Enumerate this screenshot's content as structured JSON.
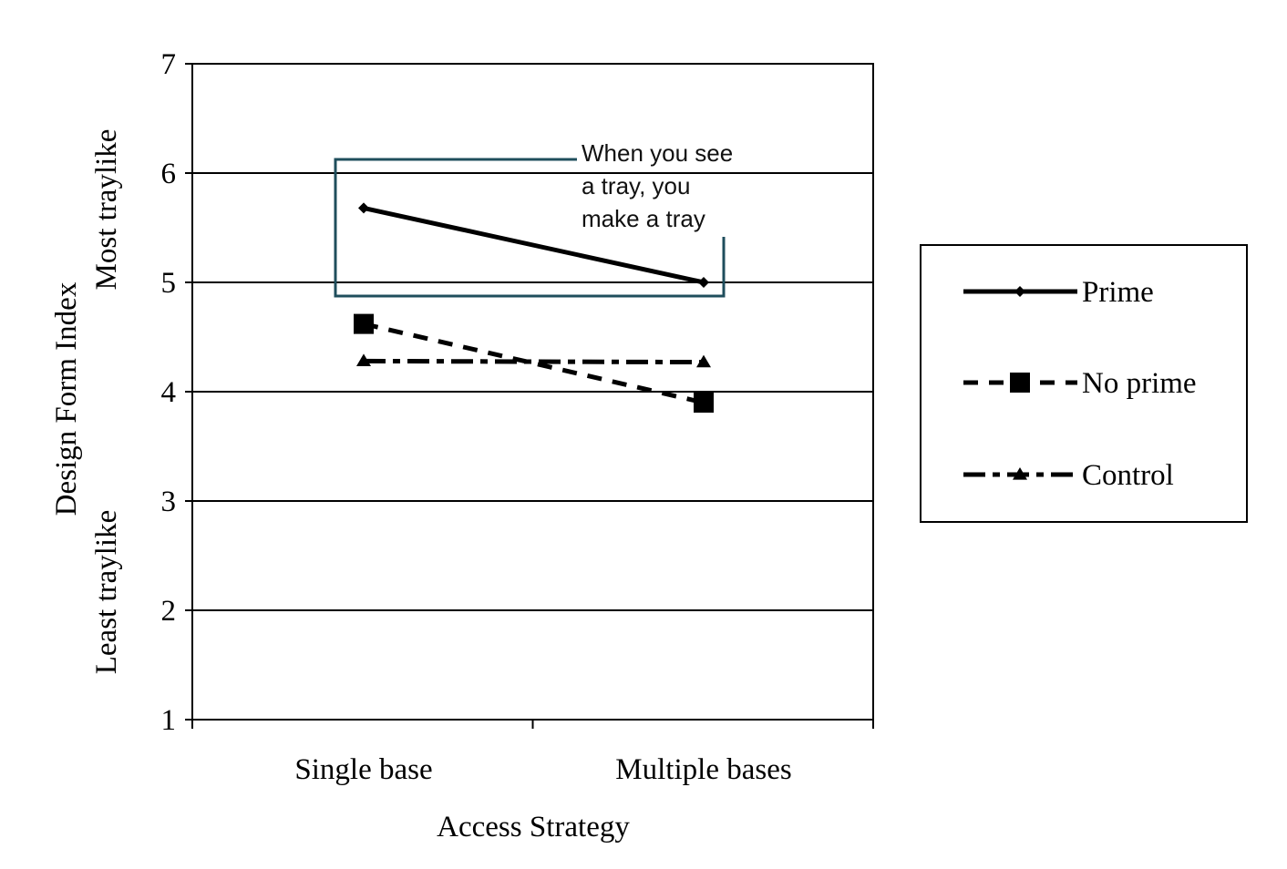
{
  "chart_data": {
    "type": "line",
    "title": "",
    "xlabel": "Access Strategy",
    "ylabel": {
      "main": "Design Form Index",
      "high": "Most traylike",
      "low": "Least traylike"
    },
    "categories": [
      "Single base",
      "Multiple bases"
    ],
    "ylim": [
      1,
      7
    ],
    "yticks": [
      "1",
      "2",
      "3",
      "4",
      "5",
      "6",
      "7"
    ],
    "grid": true,
    "legend_position": "right",
    "series": [
      {
        "name": "Prime",
        "values": [
          5.68,
          5.0
        ],
        "marker": "diamond",
        "dash": "solid"
      },
      {
        "name": "No prime",
        "values": [
          4.62,
          3.9
        ],
        "marker": "square",
        "dash": "dashed"
      },
      {
        "name": "Control",
        "values": [
          4.28,
          4.27
        ],
        "marker": "triangle",
        "dash": "dashdot"
      }
    ],
    "annotation": {
      "lines": [
        "When you see",
        "a tray, you",
        "make a tray"
      ],
      "color": "#1f4e5c"
    }
  }
}
